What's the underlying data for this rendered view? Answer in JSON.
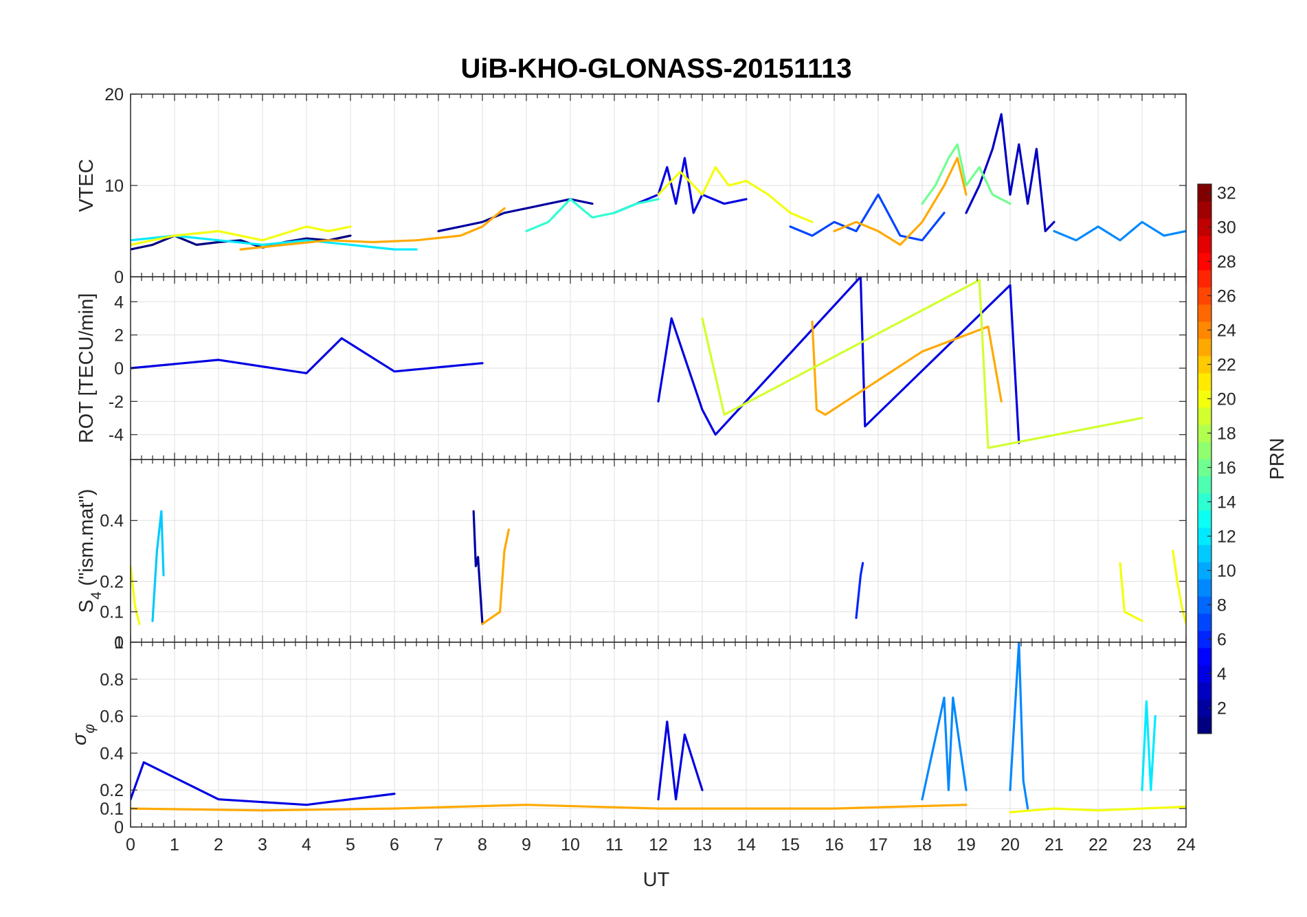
{
  "chart_data": {
    "type": "line",
    "title": "UiB-KHO-GLONASS-20151113",
    "xlabel": "UT",
    "xlim": [
      0,
      24
    ],
    "x_ticks": [
      0,
      1,
      2,
      3,
      4,
      5,
      6,
      7,
      8,
      9,
      10,
      11,
      12,
      13,
      14,
      15,
      16,
      17,
      18,
      19,
      20,
      21,
      22,
      23,
      24
    ],
    "grid": true,
    "legend": "none",
    "panels": [
      {
        "id": "vtec",
        "ylabel": "VTEC",
        "ylim": [
          0,
          20
        ],
        "y_ticks": [
          0,
          10,
          20
        ],
        "tick_labels": [
          "0",
          "10",
          "20"
        ],
        "series": [
          {
            "prn": 1,
            "x": [
              0.0,
              0.5,
              1.0,
              1.5,
              2.0,
              2.5,
              3.0,
              3.5,
              4.0,
              4.5,
              5.0
            ],
            "values": [
              3.0,
              3.5,
              4.5,
              3.5,
              3.8,
              4.0,
              3.2,
              3.8,
              4.2,
              4.0,
              4.5
            ]
          },
          {
            "prn": 2,
            "x": [
              7.0,
              7.5,
              8.0,
              8.5,
              9.0,
              9.5,
              10.0,
              10.5
            ],
            "values": [
              5.0,
              5.5,
              6.0,
              7.0,
              7.5,
              8.0,
              8.5,
              8.0
            ]
          },
          {
            "prn": 4,
            "x": [
              11.0,
              11.5,
              12.0,
              12.2,
              12.4,
              12.6,
              12.8,
              13.0,
              13.5,
              14.0
            ],
            "values": [
              7.0,
              8.0,
              9.0,
              12.0,
              8.0,
              13.0,
              7.0,
              9.0,
              8.0,
              8.5
            ]
          },
          {
            "prn": 3,
            "x": [
              19.0,
              19.3,
              19.6,
              19.8,
              20.0,
              20.2,
              20.4,
              20.6,
              20.8,
              21.0
            ],
            "values": [
              7.0,
              10.0,
              14.0,
              17.8,
              9.0,
              14.5,
              8.0,
              14.0,
              5.0,
              6.0
            ]
          },
          {
            "prn": 7,
            "x": [
              15.0,
              15.5,
              16.0,
              16.5,
              17.0,
              17.5,
              18.0,
              18.5
            ],
            "values": [
              5.5,
              4.5,
              6.0,
              5.0,
              9.0,
              4.5,
              4.0,
              7.0
            ]
          },
          {
            "prn": 9,
            "x": [
              21.0,
              21.5,
              22.0,
              22.5,
              23.0,
              23.5,
              24.0
            ],
            "values": [
              5.0,
              4.0,
              5.5,
              4.0,
              6.0,
              4.5,
              5.0
            ]
          },
          {
            "prn": 12,
            "x": [
              0.0,
              1.0,
              2.0,
              3.0,
              4.0,
              5.0,
              6.0,
              6.5
            ],
            "values": [
              4.0,
              4.5,
              4.0,
              3.5,
              4.0,
              3.5,
              3.0,
              3.0
            ]
          },
          {
            "prn": 14,
            "x": [
              9.0,
              9.5,
              10.0,
              10.5,
              11.0,
              11.5,
              12.0
            ],
            "values": [
              5.0,
              6.0,
              8.5,
              6.5,
              7.0,
              8.0,
              8.5
            ]
          },
          {
            "prn": 16,
            "x": [
              18.0,
              18.3,
              18.6,
              18.8,
              19.0,
              19.3,
              19.6,
              20.0
            ],
            "values": [
              8.0,
              10.0,
              13.0,
              14.5,
              10.0,
              12.0,
              9.0,
              8.0
            ]
          },
          {
            "prn": 20,
            "x": [
              0.0,
              1.0,
              2.0,
              3.0,
              4.0,
              4.5,
              5.0
            ],
            "values": [
              3.5,
              4.5,
              5.0,
              4.0,
              5.5,
              5.0,
              5.5
            ]
          },
          {
            "prn": 20,
            "x": [
              12.0,
              12.5,
              13.0,
              13.3,
              13.6,
              14.0,
              14.5,
              15.0,
              15.5
            ],
            "values": [
              9.0,
              11.5,
              9.0,
              12.0,
              10.0,
              10.5,
              9.0,
              7.0,
              6.0
            ]
          },
          {
            "prn": 23,
            "x": [
              2.5,
              3.5,
              4.5,
              5.5,
              6.5,
              7.5,
              8.0,
              8.5
            ],
            "values": [
              3.0,
              3.5,
              4.0,
              3.8,
              4.0,
              4.5,
              5.5,
              7.5
            ]
          },
          {
            "prn": 23,
            "x": [
              16.0,
              16.5,
              17.0,
              17.5,
              18.0,
              18.5,
              18.8,
              19.0
            ],
            "values": [
              5.0,
              6.0,
              5.0,
              3.5,
              6.0,
              10.0,
              13.0,
              9.0
            ]
          }
        ]
      },
      {
        "id": "rot",
        "ylabel": "ROT [TECU/min]",
        "ylim": [
          -5.5,
          5.5
        ],
        "y_ticks": [
          -4,
          -2,
          0,
          2,
          4
        ],
        "tick_labels": [
          "-4",
          "-2",
          "0",
          "2",
          "4"
        ],
        "series": [
          {
            "prn": 4,
            "x": [
              0.0,
              2.0,
              4.0,
              4.8,
              6.0,
              8.0
            ],
            "values": [
              0.0,
              0.5,
              -0.3,
              1.8,
              -0.2,
              0.3
            ]
          },
          {
            "prn": 4,
            "x": [
              12.0,
              12.3,
              13.0,
              13.3,
              16.6,
              16.7,
              20.0,
              20.2
            ],
            "values": [
              -2.0,
              3.0,
              -2.5,
              -4.0,
              5.5,
              -3.5,
              5.0,
              -4.5
            ]
          },
          {
            "prn": 23,
            "x": [
              15.5,
              15.6,
              15.8,
              18.0,
              19.5,
              19.8
            ],
            "values": [
              2.8,
              -2.5,
              -2.8,
              1.0,
              2.5,
              -2.0
            ]
          },
          {
            "prn": 19,
            "x": [
              13.0,
              13.5,
              19.3,
              19.5,
              23.0
            ],
            "values": [
              3.0,
              -2.8,
              5.3,
              -4.8,
              -3.0
            ]
          }
        ]
      },
      {
        "id": "s4",
        "ylabel_main": "S",
        "ylabel_sub": "4",
        "ylabel_rest": " (\"ism.mat\")",
        "ylim": [
          0,
          0.6
        ],
        "y_ticks": [
          0,
          0.1,
          0.2,
          0.4
        ],
        "tick_labels": [
          "0",
          "0.1",
          "0.2",
          "0.4"
        ],
        "series": [
          {
            "prn": 11,
            "x": [
              0.5,
              0.6,
              0.7,
              0.75
            ],
            "values": [
              0.07,
              0.3,
              0.43,
              0.22
            ]
          },
          {
            "prn": 2,
            "x": [
              7.8,
              7.85,
              7.9,
              8.0
            ],
            "values": [
              0.43,
              0.25,
              0.28,
              0.06
            ]
          },
          {
            "prn": 23,
            "x": [
              8.0,
              8.4,
              8.5,
              8.6
            ],
            "values": [
              0.06,
              0.1,
              0.3,
              0.37
            ]
          },
          {
            "prn": 6,
            "x": [
              16.5,
              16.6,
              16.65
            ],
            "values": [
              0.08,
              0.22,
              0.26
            ]
          },
          {
            "prn": 20,
            "x": [
              0.0,
              0.1,
              0.2
            ],
            "values": [
              0.25,
              0.12,
              0.06
            ]
          },
          {
            "prn": 20,
            "x": [
              22.5,
              22.6,
              23.0
            ],
            "values": [
              0.26,
              0.1,
              0.07
            ]
          },
          {
            "prn": 20,
            "x": [
              23.7,
              23.8,
              23.9,
              24.0
            ],
            "values": [
              0.3,
              0.2,
              0.12,
              0.06
            ]
          }
        ]
      },
      {
        "id": "sigma_phi",
        "ylabel_main": "σ",
        "ylabel_sub": "φ",
        "ylim": [
          0,
          1
        ],
        "y_ticks": [
          0,
          0.1,
          0.2,
          0.4,
          0.6,
          0.8,
          1
        ],
        "tick_labels": [
          "0",
          "0.1",
          "0.2",
          "0.4",
          "0.6",
          "0.8",
          "1"
        ],
        "series": [
          {
            "prn": 4,
            "x": [
              0.0,
              0.3,
              2.0,
              4.0,
              6.0
            ],
            "values": [
              0.15,
              0.35,
              0.15,
              0.12,
              0.18
            ]
          },
          {
            "prn": 4,
            "x": [
              12.0,
              12.2,
              12.4,
              12.6,
              13.0
            ],
            "values": [
              0.15,
              0.57,
              0.15,
              0.5,
              0.2
            ]
          },
          {
            "prn": 9,
            "x": [
              18.0,
              18.5,
              18.6,
              18.7,
              19.0
            ],
            "values": [
              0.15,
              0.7,
              0.2,
              0.7,
              0.2
            ]
          },
          {
            "prn": 9,
            "x": [
              20.0,
              20.2,
              20.3,
              20.4
            ],
            "values": [
              0.2,
              1.0,
              0.25,
              0.1
            ]
          },
          {
            "prn": 12,
            "x": [
              23.0,
              23.1,
              23.2,
              23.3
            ],
            "values": [
              0.2,
              0.68,
              0.2,
              0.6
            ]
          },
          {
            "prn": 23,
            "x": [
              0.0,
              3.0,
              6.0,
              9.0,
              12.0,
              16.0,
              19.0
            ],
            "values": [
              0.1,
              0.09,
              0.1,
              0.12,
              0.1,
              0.1,
              0.12
            ]
          },
          {
            "prn": 20,
            "x": [
              20.0,
              21.0,
              22.0,
              23.0,
              24.0
            ],
            "values": [
              0.08,
              0.1,
              0.09,
              0.1,
              0.11
            ]
          }
        ]
      }
    ],
    "colorbar": {
      "label": "PRN",
      "colormap": "jet",
      "range": [
        1,
        32
      ],
      "ticks": [
        2,
        4,
        6,
        8,
        10,
        12,
        14,
        16,
        18,
        20,
        22,
        24,
        26,
        28,
        30,
        32
      ],
      "tick_labels": [
        "2",
        "4",
        "6",
        "8",
        "10",
        "12",
        "14",
        "16",
        "18",
        "20",
        "22",
        "24",
        "26",
        "28",
        "30",
        "32"
      ]
    }
  }
}
